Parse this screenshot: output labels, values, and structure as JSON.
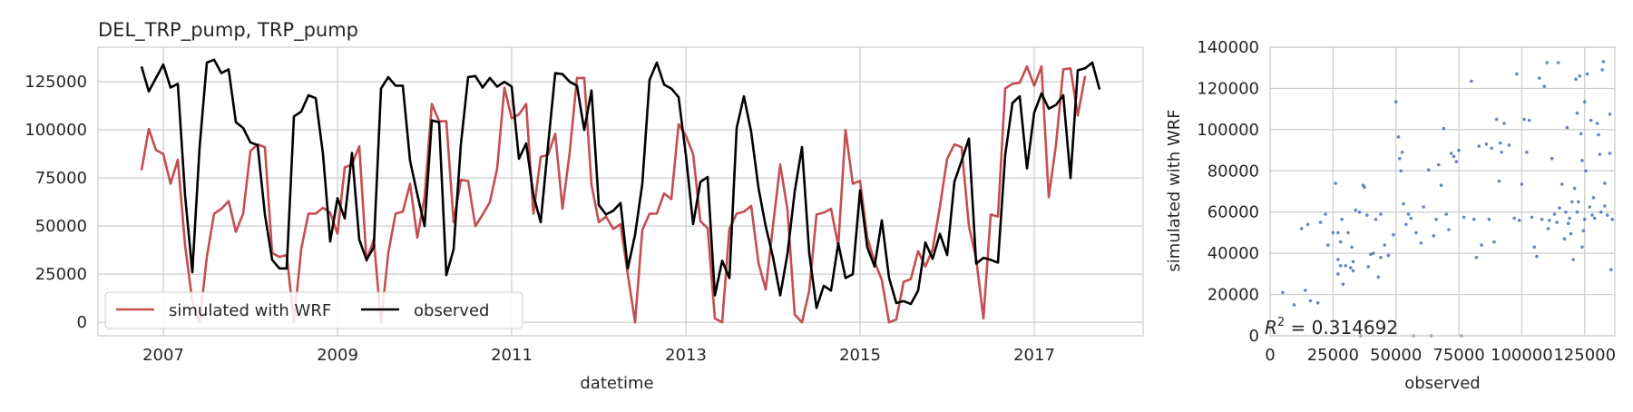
{
  "chart_data": [
    {
      "type": "line",
      "title": "DEL_TRP_pump, TRP_pump",
      "xlabel": "datetime",
      "ylabel": "",
      "x_ticks": [
        "2007",
        "2009",
        "2011",
        "2013",
        "2015",
        "2017"
      ],
      "x_tick_values": [
        2007,
        2009,
        2011,
        2013,
        2015,
        2017
      ],
      "xlim": [
        2006.25,
        2018.25
      ],
      "y_ticks": [
        "0",
        "25000",
        "50000",
        "75000",
        "100000",
        "125000"
      ],
      "y_tick_values": [
        0,
        25000,
        50000,
        75000,
        100000,
        125000
      ],
      "ylim": [
        -7000,
        143000
      ],
      "grid": true,
      "legend_position": "lower-left",
      "x_start": 2006.75,
      "x_step_months": 1,
      "series": [
        {
          "name": "simulated with WRF",
          "color": "#c44e52",
          "values": [
            79000,
            100500,
            89500,
            87500,
            72000,
            84500,
            40000,
            11000,
            0,
            34000,
            56500,
            59000,
            63000,
            47000,
            56500,
            89000,
            92500,
            91000,
            36000,
            34000,
            35000,
            0,
            38000,
            56500,
            56500,
            59500,
            57000,
            46000,
            80500,
            82000,
            91500,
            32000,
            43000,
            0,
            36000,
            56500,
            57500,
            72000,
            44000,
            65000,
            113500,
            104500,
            104500,
            52000,
            74000,
            73500,
            50000,
            56000,
            62500,
            80000,
            122000,
            106000,
            108000,
            113500,
            56500,
            86000,
            87000,
            98000,
            59000,
            88500,
            127000,
            127000,
            71500,
            52000,
            55000,
            48500,
            51000,
            25000,
            0,
            48000,
            56500,
            56500,
            67000,
            64000,
            103000,
            97000,
            87500,
            52500,
            49000,
            2000,
            0,
            48500,
            56500,
            57500,
            60500,
            31000,
            17000,
            50000,
            82000,
            58500,
            4000,
            0,
            16500,
            56000,
            57000,
            59000,
            40000,
            100000,
            72000,
            73500,
            44000,
            31500,
            22000,
            0,
            1500,
            21000,
            22500,
            37000,
            29000,
            38000,
            60000,
            85000,
            92500,
            91000,
            50000,
            33000,
            2000,
            56000,
            55000,
            121500,
            124000,
            124500,
            133000,
            123000,
            133000,
            65000,
            92500,
            131500,
            132000,
            107500,
            128000
          ]
        },
        {
          "name": "observed",
          "color": "#000000",
          "values": [
            133000,
            120000,
            127000,
            134000,
            122000,
            124000,
            66000,
            26000,
            91000,
            135000,
            136500,
            129500,
            131500,
            104000,
            101000,
            93500,
            92000,
            56000,
            32500,
            28000,
            28000,
            107000,
            109500,
            118000,
            116500,
            87500,
            42000,
            64500,
            54000,
            88000,
            43000,
            32500,
            39000,
            121500,
            127500,
            123000,
            123000,
            84000,
            66500,
            50000,
            105000,
            104000,
            24500,
            38000,
            92500,
            127500,
            128000,
            122000,
            127000,
            122500,
            125000,
            122500,
            85000,
            93000,
            66000,
            52000,
            91500,
            129500,
            129000,
            125000,
            123000,
            100000,
            120500,
            61000,
            56000,
            58000,
            62000,
            28000,
            45500,
            72000,
            126000,
            135000,
            123500,
            121500,
            117000,
            87000,
            51000,
            73000,
            75500,
            14000,
            32000,
            23000,
            101000,
            117500,
            99000,
            70000,
            50000,
            34000,
            14000,
            35500,
            68000,
            91000,
            36000,
            7500,
            19000,
            16500,
            41000,
            23000,
            25000,
            68500,
            39000,
            29000,
            53000,
            23000,
            10000,
            11000,
            9500,
            16500,
            41500,
            33000,
            46000,
            35000,
            73000,
            84000,
            95500,
            30500,
            33500,
            32500,
            31000,
            87000,
            114000,
            117500,
            80000,
            109000,
            119000,
            111000,
            113000,
            118000,
            75000,
            131000,
            132000,
            135000,
            121000
          ]
        }
      ]
    },
    {
      "type": "scatter",
      "title": "",
      "xlabel": "observed",
      "ylabel": "simulated with WRF",
      "x_ticks": [
        "0",
        "25000",
        "50000",
        "75000",
        "100000",
        "125000"
      ],
      "x_tick_values": [
        0,
        25000,
        50000,
        75000,
        100000,
        125000
      ],
      "xlim": [
        0,
        137000
      ],
      "y_ticks": [
        "0",
        "20000",
        "40000",
        "60000",
        "80000",
        "100000",
        "120000",
        "140000"
      ],
      "y_tick_values": [
        0,
        20000,
        40000,
        60000,
        80000,
        100000,
        120000,
        140000
      ],
      "ylim": [
        0,
        140000
      ],
      "grid": true,
      "color": "#4c72b0",
      "annotation": "R^2 = 0.314692",
      "annotation_main": "R",
      "annotation_sup": "2",
      "annotation_rest": " = 0.314692",
      "points": [
        [
          5000,
          21000
        ],
        [
          9500,
          15000
        ],
        [
          12500,
          52000
        ],
        [
          14000,
          22000
        ],
        [
          15000,
          54000
        ],
        [
          16000,
          17000
        ],
        [
          19000,
          16000
        ],
        [
          20000,
          55000
        ],
        [
          22000,
          59000
        ],
        [
          23000,
          44000
        ],
        [
          25000,
          50000
        ],
        [
          26000,
          74000
        ],
        [
          27000,
          50000
        ],
        [
          27000,
          30000
        ],
        [
          27000,
          37000
        ],
        [
          28000,
          45500
        ],
        [
          28000,
          34000
        ],
        [
          28500,
          56500
        ],
        [
          29000,
          25000
        ],
        [
          30000,
          34000
        ],
        [
          31000,
          50000
        ],
        [
          32000,
          33000
        ],
        [
          32500,
          43000
        ],
        [
          33000,
          31500
        ],
        [
          33000,
          36000
        ],
        [
          34000,
          61000
        ],
        [
          35500,
          60000
        ],
        [
          36000,
          0
        ],
        [
          37000,
          73000
        ],
        [
          37500,
          72000
        ],
        [
          38500,
          58500
        ],
        [
          39000,
          33500
        ],
        [
          40000,
          39500
        ],
        [
          41000,
          40000
        ],
        [
          42000,
          56500
        ],
        [
          43000,
          28500
        ],
        [
          44000,
          38000
        ],
        [
          44000,
          59000
        ],
        [
          45500,
          44000
        ],
        [
          47000,
          39000
        ],
        [
          49000,
          49000
        ],
        [
          50000,
          113500
        ],
        [
          51000,
          96500
        ],
        [
          51500,
          86000
        ],
        [
          52000,
          80000
        ],
        [
          52500,
          89000
        ],
        [
          53000,
          64000
        ],
        [
          54000,
          54000
        ],
        [
          55000,
          59000
        ],
        [
          56000,
          57000
        ],
        [
          57000,
          0
        ],
        [
          58000,
          50000
        ],
        [
          60000,
          45000
        ],
        [
          61000,
          62500
        ],
        [
          63000,
          80500
        ],
        [
          64000,
          0
        ],
        [
          65000,
          48500
        ],
        [
          66000,
          56500
        ],
        [
          67000,
          83000
        ],
        [
          68000,
          73000
        ],
        [
          69000,
          100500
        ],
        [
          70000,
          59000
        ],
        [
          71000,
          51500
        ],
        [
          72000,
          88500
        ],
        [
          73000,
          87000
        ],
        [
          74000,
          84500
        ],
        [
          75000,
          90000
        ],
        [
          76000,
          0
        ],
        [
          77000,
          57500
        ],
        [
          80000,
          123500
        ],
        [
          81000,
          56500
        ],
        [
          82000,
          38000
        ],
        [
          83000,
          92000
        ],
        [
          84000,
          44000
        ],
        [
          86000,
          93000
        ],
        [
          87000,
          56500
        ],
        [
          88000,
          91000
        ],
        [
          89000,
          45500
        ],
        [
          90000,
          105000
        ],
        [
          91000,
          75000
        ],
        [
          91500,
          93500
        ],
        [
          92000,
          89000
        ],
        [
          93000,
          103000
        ],
        [
          95000,
          92500
        ],
        [
          97000,
          57000
        ],
        [
          98000,
          127000
        ],
        [
          99000,
          56000
        ],
        [
          100000,
          73500
        ],
        [
          101000,
          105000
        ],
        [
          102000,
          89000
        ],
        [
          103000,
          104500
        ],
        [
          104000,
          57500
        ],
        [
          105000,
          43000
        ],
        [
          106000,
          38500
        ],
        [
          107000,
          125000
        ],
        [
          108000,
          56500
        ],
        [
          109000,
          121000
        ],
        [
          110000,
          132500
        ],
        [
          110500,
          52000
        ],
        [
          111000,
          56000
        ],
        [
          112000,
          86000
        ],
        [
          113000,
          59000
        ],
        [
          114000,
          55000
        ],
        [
          114500,
          132500
        ],
        [
          115000,
          62000
        ],
        [
          116000,
          73500
        ],
        [
          117000,
          47000
        ],
        [
          117500,
          60000
        ],
        [
          118000,
          101000
        ],
        [
          118500,
          54500
        ],
        [
          119000,
          57000
        ],
        [
          119500,
          49500
        ],
        [
          120000,
          65000
        ],
        [
          120500,
          37000
        ],
        [
          121000,
          71500
        ],
        [
          121500,
          124500
        ],
        [
          122000,
          108000
        ],
        [
          122000,
          60000
        ],
        [
          122500,
          65000
        ],
        [
          123000,
          126000
        ],
        [
          123500,
          98000
        ],
        [
          124000,
          43000
        ],
        [
          124000,
          85000
        ],
        [
          124500,
          51000
        ],
        [
          125000,
          113500
        ],
        [
          125000,
          56500
        ],
        [
          125500,
          80000
        ],
        [
          126000,
          127000
        ],
        [
          127000,
          62500
        ],
        [
          127500,
          104500
        ],
        [
          128000,
          58500
        ],
        [
          128500,
          67000
        ],
        [
          129000,
          57000
        ],
        [
          130000,
          103000
        ],
        [
          130500,
          97500
        ],
        [
          131000,
          88000
        ],
        [
          131500,
          60000
        ],
        [
          132000,
          129000
        ],
        [
          132500,
          133000
        ],
        [
          133000,
          74000
        ],
        [
          133000,
          63000
        ],
        [
          134000,
          58500
        ],
        [
          135000,
          107500
        ],
        [
          135000,
          88500
        ],
        [
          135500,
          32000
        ],
        [
          136000,
          56500
        ]
      ]
    }
  ]
}
